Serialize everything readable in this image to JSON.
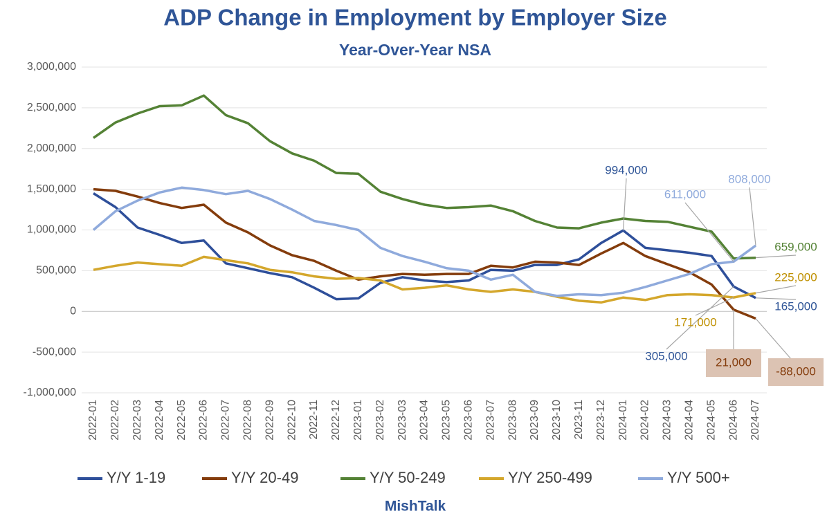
{
  "chart_data": {
    "type": "line",
    "title": "ADP Change in Employment by Employer Size",
    "subtitle": "Year-Over-Year NSA",
    "source": "MishTalk",
    "categories": [
      "2022-01",
      "2022-02",
      "2022-03",
      "2022-04",
      "2022-05",
      "2022-06",
      "2022-07",
      "2022-08",
      "2022-09",
      "2022-10",
      "2022-11",
      "2022-12",
      "2023-01",
      "2023-02",
      "2023-03",
      "2023-04",
      "2023-05",
      "2023-06",
      "2023-07",
      "2023-08",
      "2023-09",
      "2023-10",
      "2023-11",
      "2023-12",
      "2024-01",
      "2024-02",
      "2024-03",
      "2024-04",
      "2024-05",
      "2024-06",
      "2024-07"
    ],
    "ylim": [
      -1000000,
      3000000
    ],
    "yticks": [
      {
        "value": -1000000,
        "label": "-1,000,000"
      },
      {
        "value": -500000,
        "label": "-500,000"
      },
      0,
      {
        "value": 500000,
        "label": "500,000"
      },
      {
        "value": 1000000,
        "label": "1,000,000"
      },
      {
        "value": 1500000,
        "label": "1,500,000"
      },
      {
        "value": 2000000,
        "label": "2,000,000"
      },
      {
        "value": 2500000,
        "label": "2,500,000"
      },
      {
        "value": 3000000,
        "label": "3,000,000"
      }
    ],
    "grid": true,
    "legend": "bottom",
    "series": [
      {
        "name": "Y/Y 1-19",
        "color": "#2e4f9a",
        "values": [
          1450000,
          1280000,
          1030000,
          940000,
          840000,
          870000,
          590000,
          530000,
          470000,
          420000,
          290000,
          150000,
          160000,
          350000,
          420000,
          380000,
          360000,
          380000,
          510000,
          500000,
          570000,
          570000,
          640000,
          840000,
          994000,
          780000,
          750000,
          720000,
          680000,
          305000,
          165000
        ],
        "value_labels": [
          null,
          null,
          null,
          null,
          null,
          null,
          null,
          null,
          null,
          null,
          null,
          null,
          null,
          null,
          null,
          null,
          null,
          null,
          null,
          null,
          null,
          null,
          null,
          null,
          "994,000",
          null,
          null,
          null,
          null,
          "305,000",
          "165,000"
        ]
      },
      {
        "name": "Y/Y 20-49",
        "color": "#843c0c",
        "values": [
          1500000,
          1480000,
          1410000,
          1330000,
          1270000,
          1310000,
          1090000,
          970000,
          810000,
          690000,
          620000,
          500000,
          390000,
          430000,
          460000,
          450000,
          460000,
          460000,
          560000,
          540000,
          610000,
          600000,
          570000,
          710000,
          840000,
          680000,
          580000,
          480000,
          330000,
          21000,
          -88000
        ],
        "value_labels": [
          null,
          null,
          null,
          null,
          null,
          null,
          null,
          null,
          null,
          null,
          null,
          null,
          null,
          null,
          null,
          null,
          null,
          null,
          null,
          null,
          null,
          null,
          null,
          null,
          null,
          null,
          null,
          null,
          null,
          "21,000",
          "-88,000"
        ]
      },
      {
        "name": "Y/Y 50-249",
        "color": "#548235",
        "values": [
          2130000,
          2320000,
          2430000,
          2520000,
          2530000,
          2650000,
          2410000,
          2310000,
          2090000,
          1940000,
          1850000,
          1700000,
          1690000,
          1470000,
          1380000,
          1310000,
          1270000,
          1280000,
          1300000,
          1230000,
          1110000,
          1030000,
          1020000,
          1090000,
          1140000,
          1110000,
          1100000,
          1040000,
          980000,
          650000,
          659000
        ],
        "value_labels": [
          null,
          null,
          null,
          null,
          null,
          null,
          null,
          null,
          null,
          null,
          null,
          null,
          null,
          null,
          null,
          null,
          null,
          null,
          null,
          null,
          null,
          null,
          null,
          null,
          null,
          null,
          null,
          null,
          null,
          null,
          "659,000"
        ]
      },
      {
        "name": "Y/Y 250-499",
        "color": "#d4a72c",
        "values": [
          510000,
          560000,
          600000,
          580000,
          560000,
          670000,
          630000,
          590000,
          510000,
          480000,
          430000,
          400000,
          410000,
          380000,
          270000,
          290000,
          320000,
          270000,
          240000,
          270000,
          240000,
          180000,
          130000,
          110000,
          170000,
          140000,
          200000,
          210000,
          200000,
          171000,
          225000
        ],
        "value_labels": [
          null,
          null,
          null,
          null,
          null,
          null,
          null,
          null,
          null,
          null,
          null,
          null,
          null,
          null,
          null,
          null,
          null,
          null,
          null,
          null,
          null,
          null,
          null,
          null,
          null,
          null,
          null,
          null,
          null,
          "171,000",
          "225,000"
        ]
      },
      {
        "name": "Y/Y 500+",
        "color": "#8faadc",
        "values": [
          1000000,
          1230000,
          1360000,
          1460000,
          1520000,
          1490000,
          1440000,
          1480000,
          1380000,
          1250000,
          1110000,
          1060000,
          1000000,
          780000,
          680000,
          610000,
          530000,
          500000,
          390000,
          450000,
          240000,
          190000,
          210000,
          200000,
          230000,
          300000,
          380000,
          460000,
          580000,
          611000,
          808000
        ],
        "value_labels": [
          null,
          null,
          null,
          null,
          null,
          null,
          null,
          null,
          null,
          null,
          null,
          null,
          null,
          null,
          null,
          null,
          null,
          null,
          null,
          null,
          null,
          null,
          null,
          null,
          null,
          null,
          null,
          null,
          null,
          "611,000",
          "808,000"
        ]
      }
    ]
  }
}
